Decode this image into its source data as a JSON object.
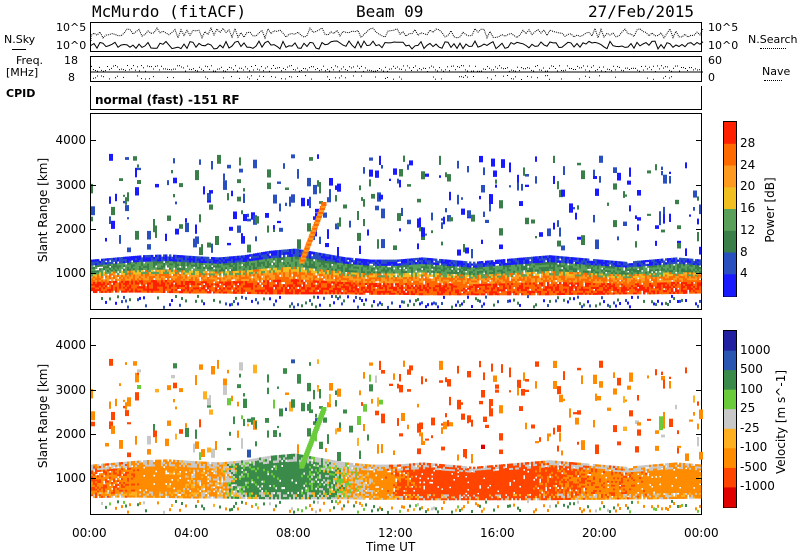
{
  "header": {
    "radar": "McMurdo (fitACF)",
    "beam": "Beam 09",
    "date": "27/Feb/2015"
  },
  "top_strips": {
    "nsky_label": "N.Sky",
    "nsearch_label": "N.Search",
    "freq_label": "Freq.",
    "freq_unit": "[MHz]",
    "nave_label": "Nave",
    "cpid_label": "CPID",
    "cpid_value": "normal (fast) -151 RF",
    "left_ticks_noise": [
      "10^5",
      "10^0"
    ],
    "right_ticks_noise": [
      "10^5",
      "10^0"
    ],
    "left_ticks_freq": [
      "18",
      "8"
    ],
    "right_ticks_nave": [
      "60",
      "0"
    ]
  },
  "colors": {
    "power": [
      "#1a1aff",
      "#2a4fbf",
      "#3a7f4a",
      "#5aa05a",
      "#f0c020",
      "#ff9a20",
      "#ff6a00",
      "#ff2000"
    ],
    "velocity": [
      "#2020a0",
      "#2a55b0",
      "#3a8a4a",
      "#6acc3a",
      "#c8c8c8",
      "#ffb020",
      "#ff8c00",
      "#ff4500",
      "#e00000"
    ]
  },
  "chart_data": [
    {
      "type": "heatmap",
      "title": "",
      "xlabel": "Time UT",
      "ylabel": "Slant Range [km]",
      "x_ticks": [
        "00:00",
        "04:00",
        "08:00",
        "12:00",
        "16:00",
        "20:00",
        "00:00"
      ],
      "y_ticks": [
        "1000",
        "2000",
        "3000",
        "4000"
      ],
      "ylim": [
        180,
        4600
      ],
      "xlim_hours": [
        0,
        24
      ],
      "colorbar": {
        "label": "Power [dB]",
        "ticks": [
          "28",
          "24",
          "20",
          "16",
          "12",
          "8",
          "4"
        ],
        "range": [
          0,
          30
        ]
      },
      "band_lower_km": [
        550,
        560,
        560,
        550,
        540,
        540,
        530,
        520,
        520,
        520,
        520,
        510,
        510,
        500,
        500,
        500,
        500,
        500,
        500,
        510,
        510,
        520,
        520,
        530,
        540
      ],
      "band_upper_km": [
        1300,
        1350,
        1400,
        1420,
        1380,
        1350,
        1400,
        1500,
        1550,
        1450,
        1350,
        1300,
        1300,
        1350,
        1300,
        1250,
        1300,
        1350,
        1400,
        1350,
        1300,
        1250,
        1300,
        1350,
        1300
      ]
    },
    {
      "type": "heatmap",
      "title": "",
      "xlabel": "Time UT",
      "ylabel": "Slant Range [km]",
      "x_ticks": [
        "00:00",
        "04:00",
        "08:00",
        "12:00",
        "16:00",
        "20:00",
        "00:00"
      ],
      "y_ticks": [
        "1000",
        "2000",
        "3000",
        "4000"
      ],
      "ylim": [
        180,
        4600
      ],
      "xlim_hours": [
        0,
        24
      ],
      "colorbar": {
        "label": "Velocity [m s^-1]",
        "ticks": [
          "1000",
          "500",
          "100",
          "25",
          "-25",
          "-100",
          "-500",
          "-1000"
        ],
        "range": [
          -1000,
          1000
        ]
      },
      "dominant_velocity_by_hour": [
        -300,
        -300,
        -200,
        -150,
        -100,
        -80,
        120,
        150,
        160,
        80,
        -20,
        -100,
        -300,
        -400,
        -450,
        -500,
        -450,
        -400,
        -350,
        -300,
        -250,
        -250,
        -200,
        -200,
        -150
      ]
    }
  ],
  "xaxis": {
    "ticks": [
      "00:00",
      "04:00",
      "08:00",
      "12:00",
      "16:00",
      "20:00",
      "00:00"
    ],
    "label": "Time UT"
  }
}
